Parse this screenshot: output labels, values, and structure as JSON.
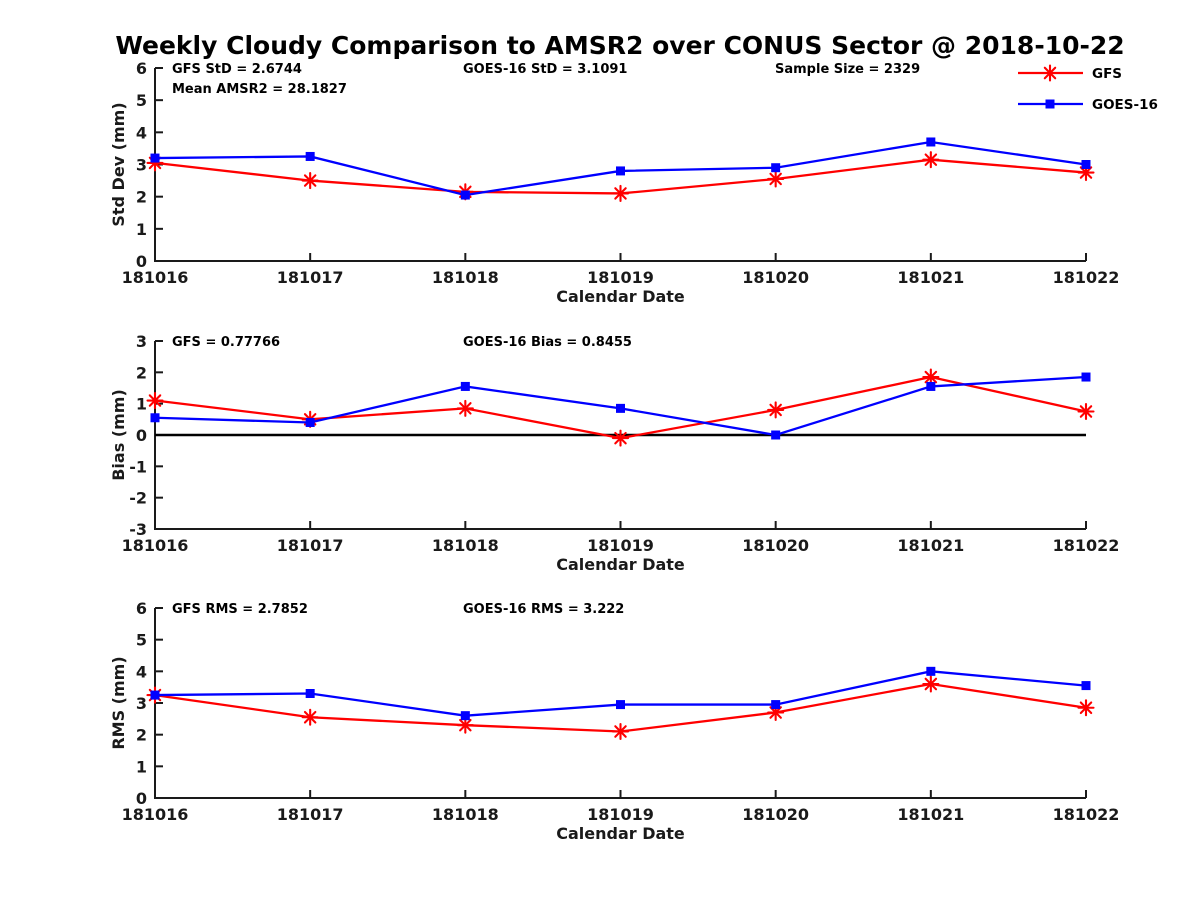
{
  "title": "Weekly Cloudy Comparison to AMSR2 over CONUS Sector @ 2018-10-22",
  "colors": {
    "gfs": "#ff0000",
    "goes16": "#0000ff",
    "axis": "#1a1a1a",
    "zero_line": "#000000"
  },
  "legend": {
    "items": [
      {
        "label": "GFS",
        "color": "#ff0000",
        "marker": "asterisk"
      },
      {
        "label": "GOES-16",
        "color": "#0000ff",
        "marker": "square"
      }
    ]
  },
  "chart_data": [
    {
      "type": "line",
      "name": "std-dev-panel",
      "ylabel": "Std Dev (mm)",
      "xlabel": "Calendar Date",
      "ylim": [
        0,
        6
      ],
      "yticks": [
        0,
        1,
        2,
        3,
        4,
        5,
        6
      ],
      "categories": [
        "181016",
        "181017",
        "181018",
        "181019",
        "181020",
        "181021",
        "181022"
      ],
      "series": [
        {
          "name": "GFS",
          "color": "#ff0000",
          "marker": "asterisk",
          "values": [
            3.05,
            2.5,
            2.15,
            2.1,
            2.55,
            3.15,
            2.75
          ]
        },
        {
          "name": "GOES-16",
          "color": "#0000ff",
          "marker": "square",
          "values": [
            3.2,
            3.25,
            2.05,
            2.8,
            2.9,
            3.7,
            3.0
          ]
        }
      ],
      "annotations": [
        {
          "text": "GFS StD = 2.6744",
          "col": 0,
          "row": 0
        },
        {
          "text": "Mean AMSR2 = 28.1827",
          "col": 0,
          "row": 1
        },
        {
          "text": "GOES-16 StD = 3.1091",
          "col": 1,
          "row": 0
        },
        {
          "text": "Sample Size = 2329",
          "col": 2,
          "row": 0
        }
      ],
      "zero_line": false,
      "show_legend": true
    },
    {
      "type": "line",
      "name": "bias-panel",
      "ylabel": "Bias (mm)",
      "xlabel": "Calendar Date",
      "ylim": [
        -3,
        3
      ],
      "yticks": [
        -3,
        -2,
        -1,
        0,
        1,
        2,
        3
      ],
      "categories": [
        "181016",
        "181017",
        "181018",
        "181019",
        "181020",
        "181021",
        "181022"
      ],
      "series": [
        {
          "name": "GFS",
          "color": "#ff0000",
          "marker": "asterisk",
          "values": [
            1.1,
            0.5,
            0.85,
            -0.1,
            0.8,
            1.85,
            0.75
          ]
        },
        {
          "name": "GOES-16",
          "color": "#0000ff",
          "marker": "square",
          "values": [
            0.55,
            0.4,
            1.55,
            0.85,
            0.0,
            1.55,
            1.85
          ]
        }
      ],
      "annotations": [
        {
          "text": "GFS = 0.77766",
          "col": 0,
          "row": 0
        },
        {
          "text": "GOES-16 Bias  = 0.8455",
          "col": 1,
          "row": 0
        }
      ],
      "zero_line": true,
      "show_legend": false
    },
    {
      "type": "line",
      "name": "rms-panel",
      "ylabel": "RMS (mm)",
      "xlabel": "Calendar Date",
      "ylim": [
        0,
        6
      ],
      "yticks": [
        0,
        1,
        2,
        3,
        4,
        5,
        6
      ],
      "categories": [
        "181016",
        "181017",
        "181018",
        "181019",
        "181020",
        "181021",
        "181022"
      ],
      "series": [
        {
          "name": "GFS",
          "color": "#ff0000",
          "marker": "asterisk",
          "values": [
            3.25,
            2.55,
            2.3,
            2.1,
            2.7,
            3.6,
            2.85
          ]
        },
        {
          "name": "GOES-16",
          "color": "#0000ff",
          "marker": "square",
          "values": [
            3.25,
            3.3,
            2.6,
            2.95,
            2.95,
            4.0,
            3.55
          ]
        }
      ],
      "annotations": [
        {
          "text": "GFS RMS = 2.7852",
          "col": 0,
          "row": 0
        },
        {
          "text": "GOES-16 RMS = 3.222",
          "col": 1,
          "row": 0
        }
      ],
      "zero_line": false,
      "show_legend": false
    }
  ]
}
